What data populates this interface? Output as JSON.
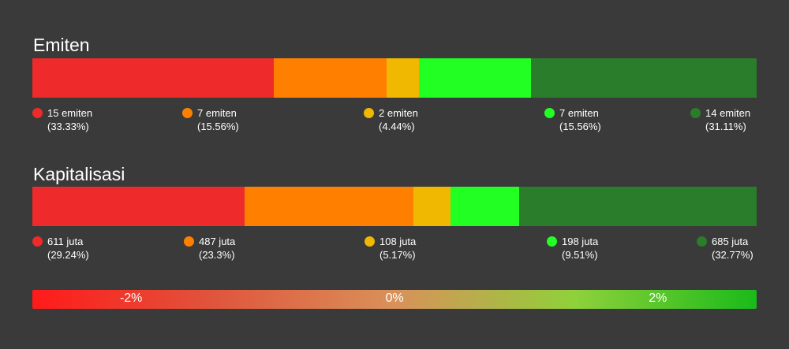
{
  "chart_data": [
    {
      "type": "bar",
      "title": "Emiten",
      "stacked": true,
      "orientation": "horizontal",
      "segments": [
        {
          "value": 15,
          "label": "15 emiten",
          "percent_label": "(33.33%)",
          "percent": 33.33,
          "color": "#ee2a2a"
        },
        {
          "value": 7,
          "label": "7 emiten",
          "percent_label": "(15.56%)",
          "percent": 15.56,
          "color": "#ff8000"
        },
        {
          "value": 2,
          "label": "2 emiten",
          "percent_label": "(4.44%)",
          "percent": 4.44,
          "color": "#f0b800"
        },
        {
          "value": 7,
          "label": "7 emiten",
          "percent_label": "(15.56%)",
          "percent": 15.56,
          "color": "#22ff22"
        },
        {
          "value": 14,
          "label": "14 emiten",
          "percent_label": "(31.11%)",
          "percent": 31.11,
          "color": "#2a7d2a"
        }
      ]
    },
    {
      "type": "bar",
      "title": "Kapitalisasi",
      "stacked": true,
      "orientation": "horizontal",
      "segments": [
        {
          "value": 611,
          "label": "611 juta",
          "percent_label": "(29.24%)",
          "percent": 29.24,
          "color": "#ee2a2a"
        },
        {
          "value": 487,
          "label": "487 juta",
          "percent_label": "(23.3%)",
          "percent": 23.3,
          "color": "#ff8000"
        },
        {
          "value": 108,
          "label": "108 juta",
          "percent_label": "(5.17%)",
          "percent": 5.17,
          "color": "#f0b800"
        },
        {
          "value": 198,
          "label": "198 juta",
          "percent_label": "(9.51%)",
          "percent": 9.51,
          "color": "#22ff22"
        },
        {
          "value": 685,
          "label": "685 juta",
          "percent_label": "(32.77%)",
          "percent": 32.77,
          "color": "#2a7d2a"
        }
      ]
    }
  ],
  "scale": {
    "labels": [
      "-2%",
      "0%",
      "2%"
    ],
    "range": [
      -2.75,
      2.75
    ],
    "values": [
      -2,
      0,
      2
    ]
  }
}
